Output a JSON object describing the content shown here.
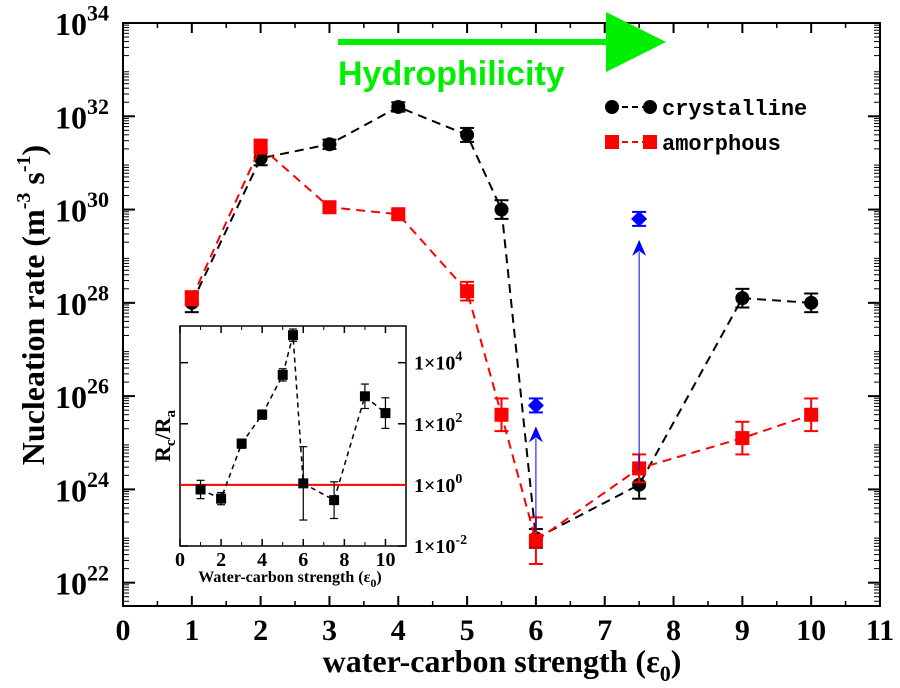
{
  "chart_data": [
    {
      "type": "line",
      "xlabel": "water-carbon strength (ε0)",
      "ylabel": "Nucleation rate (m-3 s-1)",
      "xlim": [
        0,
        11
      ],
      "xticks": [
        "0",
        "1",
        "2",
        "3",
        "4",
        "5",
        "6",
        "7",
        "8",
        "9",
        "10",
        "11"
      ],
      "ylog": true,
      "ylim_exp": [
        21.5,
        34
      ],
      "ytick_exps": [
        22,
        24,
        26,
        28,
        30,
        32,
        34
      ],
      "ytick_base": "10",
      "annotation": "Hydrophilicity",
      "annotation_color": "#00ee00",
      "legend_position": "top-right",
      "series": [
        {
          "name": "crystalline",
          "color": "#000000",
          "marker": "circle",
          "x": [
            1,
            2,
            3,
            4,
            5,
            5.5,
            6,
            7.5,
            9,
            10
          ],
          "log10_y": [
            28.0,
            31.1,
            31.4,
            32.2,
            31.6,
            30.0,
            22.95,
            24.1,
            28.1,
            28.0
          ],
          "log10_err": [
            0.2,
            0.15,
            0.1,
            0.1,
            0.15,
            0.2,
            0.2,
            0.3,
            0.2,
            0.2
          ]
        },
        {
          "name": "amorphous",
          "color": "#ff0000",
          "marker": "square",
          "x": [
            1,
            2,
            3,
            4,
            5,
            5.5,
            6,
            7.5,
            9,
            10
          ],
          "log10_y": [
            28.1,
            31.35,
            30.05,
            29.9,
            28.25,
            25.6,
            22.9,
            24.45,
            25.1,
            25.6
          ],
          "log10_err": [
            0.15,
            0.15,
            0.1,
            0.1,
            0.2,
            0.35,
            0.5,
            0.3,
            0.35,
            0.35
          ]
        },
        {
          "name": "",
          "color": "#0000ff",
          "marker": "diamond",
          "x": [
            6,
            7.5
          ],
          "log10_y": [
            25.8,
            29.8
          ],
          "log10_err": [
            0.15,
            0.15
          ],
          "arrow_from_log10": [
            23.1,
            24.4
          ],
          "arrow_to_log10": [
            25.35,
            29.35
          ]
        }
      ]
    },
    {
      "type": "line",
      "xlabel": "Water-carbon strength (ε0)",
      "ylabel": "Rc/Ra",
      "xlim": [
        0,
        11
      ],
      "xticks": [
        "0",
        "2",
        "4",
        "6",
        "8",
        "10"
      ],
      "ylog": true,
      "ylim_exp": [
        -2,
        5.2
      ],
      "ytick_exps": [
        -2,
        0,
        2,
        4
      ],
      "ytick_label_prefix": "1×10",
      "reference_line_log10": 0,
      "reference_color": "#ff0000",
      "series": [
        {
          "name": "",
          "color": "#000000",
          "marker": "square",
          "x": [
            1,
            2,
            3,
            4,
            5,
            5.5,
            6,
            7.5,
            9,
            10
          ],
          "log10_y": [
            -0.15,
            -0.45,
            1.35,
            2.3,
            3.6,
            4.9,
            0.05,
            -0.5,
            2.9,
            2.35
          ],
          "log10_err": [
            0.3,
            0.2,
            0.15,
            0.15,
            0.2,
            0.2,
            1.2,
            0.6,
            0.4,
            0.5
          ]
        }
      ]
    }
  ]
}
